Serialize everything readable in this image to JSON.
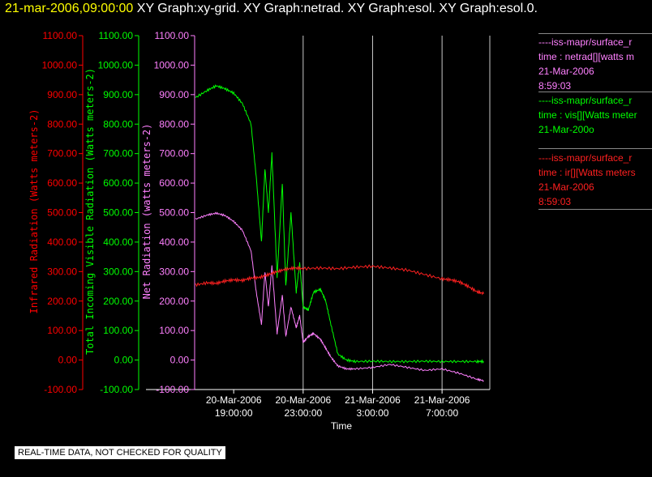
{
  "header": {
    "date": "21-mar-2006,09:00:00",
    "graphs": "XY Graph:xy-grid.  XY Graph:netrad.  XY Graph:esol.  XY Graph:esol.0."
  },
  "legend": [
    {
      "source": "----iss-mapr/surface_r",
      "var": "time : netrad[][watts m",
      "date": "21-Mar-2006",
      "time": "8:59:03",
      "color": "#ff80ff"
    },
    {
      "source": "----iss-mapr/surface_r",
      "var": "time : vis[][Watts meter",
      "date": "21-Mar-200o",
      "time": "",
      "color": "#00ff00"
    },
    {
      "source": "----iss-mapr/surface_r",
      "var": "time : ir[][Watts meters",
      "date": "21-Mar-2006",
      "time": "8:59:03",
      "color": "#ff2020"
    }
  ],
  "footer_note": "REAL-TIME DATA, NOT CHECKED FOR QUALITY",
  "chart_data": {
    "type": "line",
    "xlabel": "Time",
    "x_ticks": [
      {
        "date": "20-Mar-2006",
        "time": "19:00:00"
      },
      {
        "date": "20-Mar-2006",
        "time": "23:00:00"
      },
      {
        "date": "21-Mar-2006",
        "time": "3:00:00"
      },
      {
        "date": "21-Mar-2006",
        "time": "7:00:00"
      }
    ],
    "xlim_hours": [
      -2.25,
      14.75
    ],
    "y_axes": [
      {
        "label": "Infrared Radiation (Watts meters-2)",
        "color": "#ff0000",
        "ylim": [
          -100,
          1100
        ]
      },
      {
        "label": "Total Incoming Visible Radiation (Watts meters-2)",
        "color": "#00ff00",
        "ylim": [
          -100,
          1100
        ]
      },
      {
        "label": "Net Radiation (watts meters-2)",
        "color": "#ff80ff",
        "ylim": [
          -100,
          1100
        ]
      }
    ],
    "y_ticks": [
      "-100.00",
      "0.00",
      "100.00",
      "200.00",
      "300.00",
      "400.00",
      "500.00",
      "600.00",
      "700.00",
      "800.00",
      "900.00",
      "1000.00",
      "1100.00"
    ],
    "grid": "vertical",
    "series": [
      {
        "name": "vis",
        "color": "#00ff00",
        "x": [
          -2.2,
          -1.5,
          -1.0,
          -0.5,
          0,
          0.5,
          1.0,
          1.3,
          1.6,
          1.8,
          2.0,
          2.2,
          2.5,
          2.8,
          3.0,
          3.3,
          3.6,
          3.8,
          4.0,
          4.3,
          4.6,
          5.0,
          5.3,
          5.6,
          6.0,
          6.5,
          7.0,
          8,
          9,
          10,
          11,
          12,
          13,
          14,
          14.4
        ],
        "y": [
          890,
          915,
          930,
          920,
          905,
          870,
          800,
          620,
          400,
          650,
          500,
          700,
          280,
          600,
          250,
          500,
          230,
          330,
          180,
          170,
          230,
          240,
          200,
          120,
          20,
          0,
          -5,
          -4,
          -5,
          -5,
          -4,
          -5,
          -5,
          -5,
          -5
        ]
      },
      {
        "name": "netrad",
        "color": "#ff80ff",
        "x": [
          -2.2,
          -1.5,
          -1.0,
          -0.5,
          0,
          0.5,
          1.0,
          1.3,
          1.6,
          1.8,
          2.0,
          2.2,
          2.5,
          2.8,
          3.0,
          3.3,
          3.6,
          3.8,
          4.0,
          4.3,
          4.6,
          5.0,
          5.3,
          5.6,
          6.0,
          6.5,
          7.0,
          8,
          9,
          10,
          11,
          12,
          13,
          14,
          14.4
        ],
        "y": [
          478,
          492,
          498,
          490,
          470,
          440,
          370,
          230,
          120,
          300,
          180,
          320,
          90,
          220,
          80,
          180,
          110,
          150,
          60,
          80,
          90,
          70,
          40,
          10,
          -20,
          -30,
          -30,
          -25,
          -15,
          -25,
          -35,
          -30,
          -45,
          -65,
          -70
        ]
      },
      {
        "name": "ir",
        "color": "#ff2020",
        "x": [
          -2.2,
          -1.5,
          -1.0,
          -0.5,
          0,
          0.5,
          1.0,
          1.5,
          2.0,
          2.5,
          3.0,
          3.5,
          4.0,
          5.0,
          6.0,
          7.0,
          8.0,
          9.0,
          10.0,
          11.0,
          12.0,
          12.5,
          13.0,
          13.5,
          14.0,
          14.4
        ],
        "y": [
          255,
          262,
          260,
          268,
          272,
          270,
          278,
          280,
          290,
          300,
          308,
          312,
          310,
          312,
          310,
          315,
          318,
          312,
          305,
          290,
          275,
          272,
          265,
          250,
          232,
          225
        ]
      }
    ]
  }
}
